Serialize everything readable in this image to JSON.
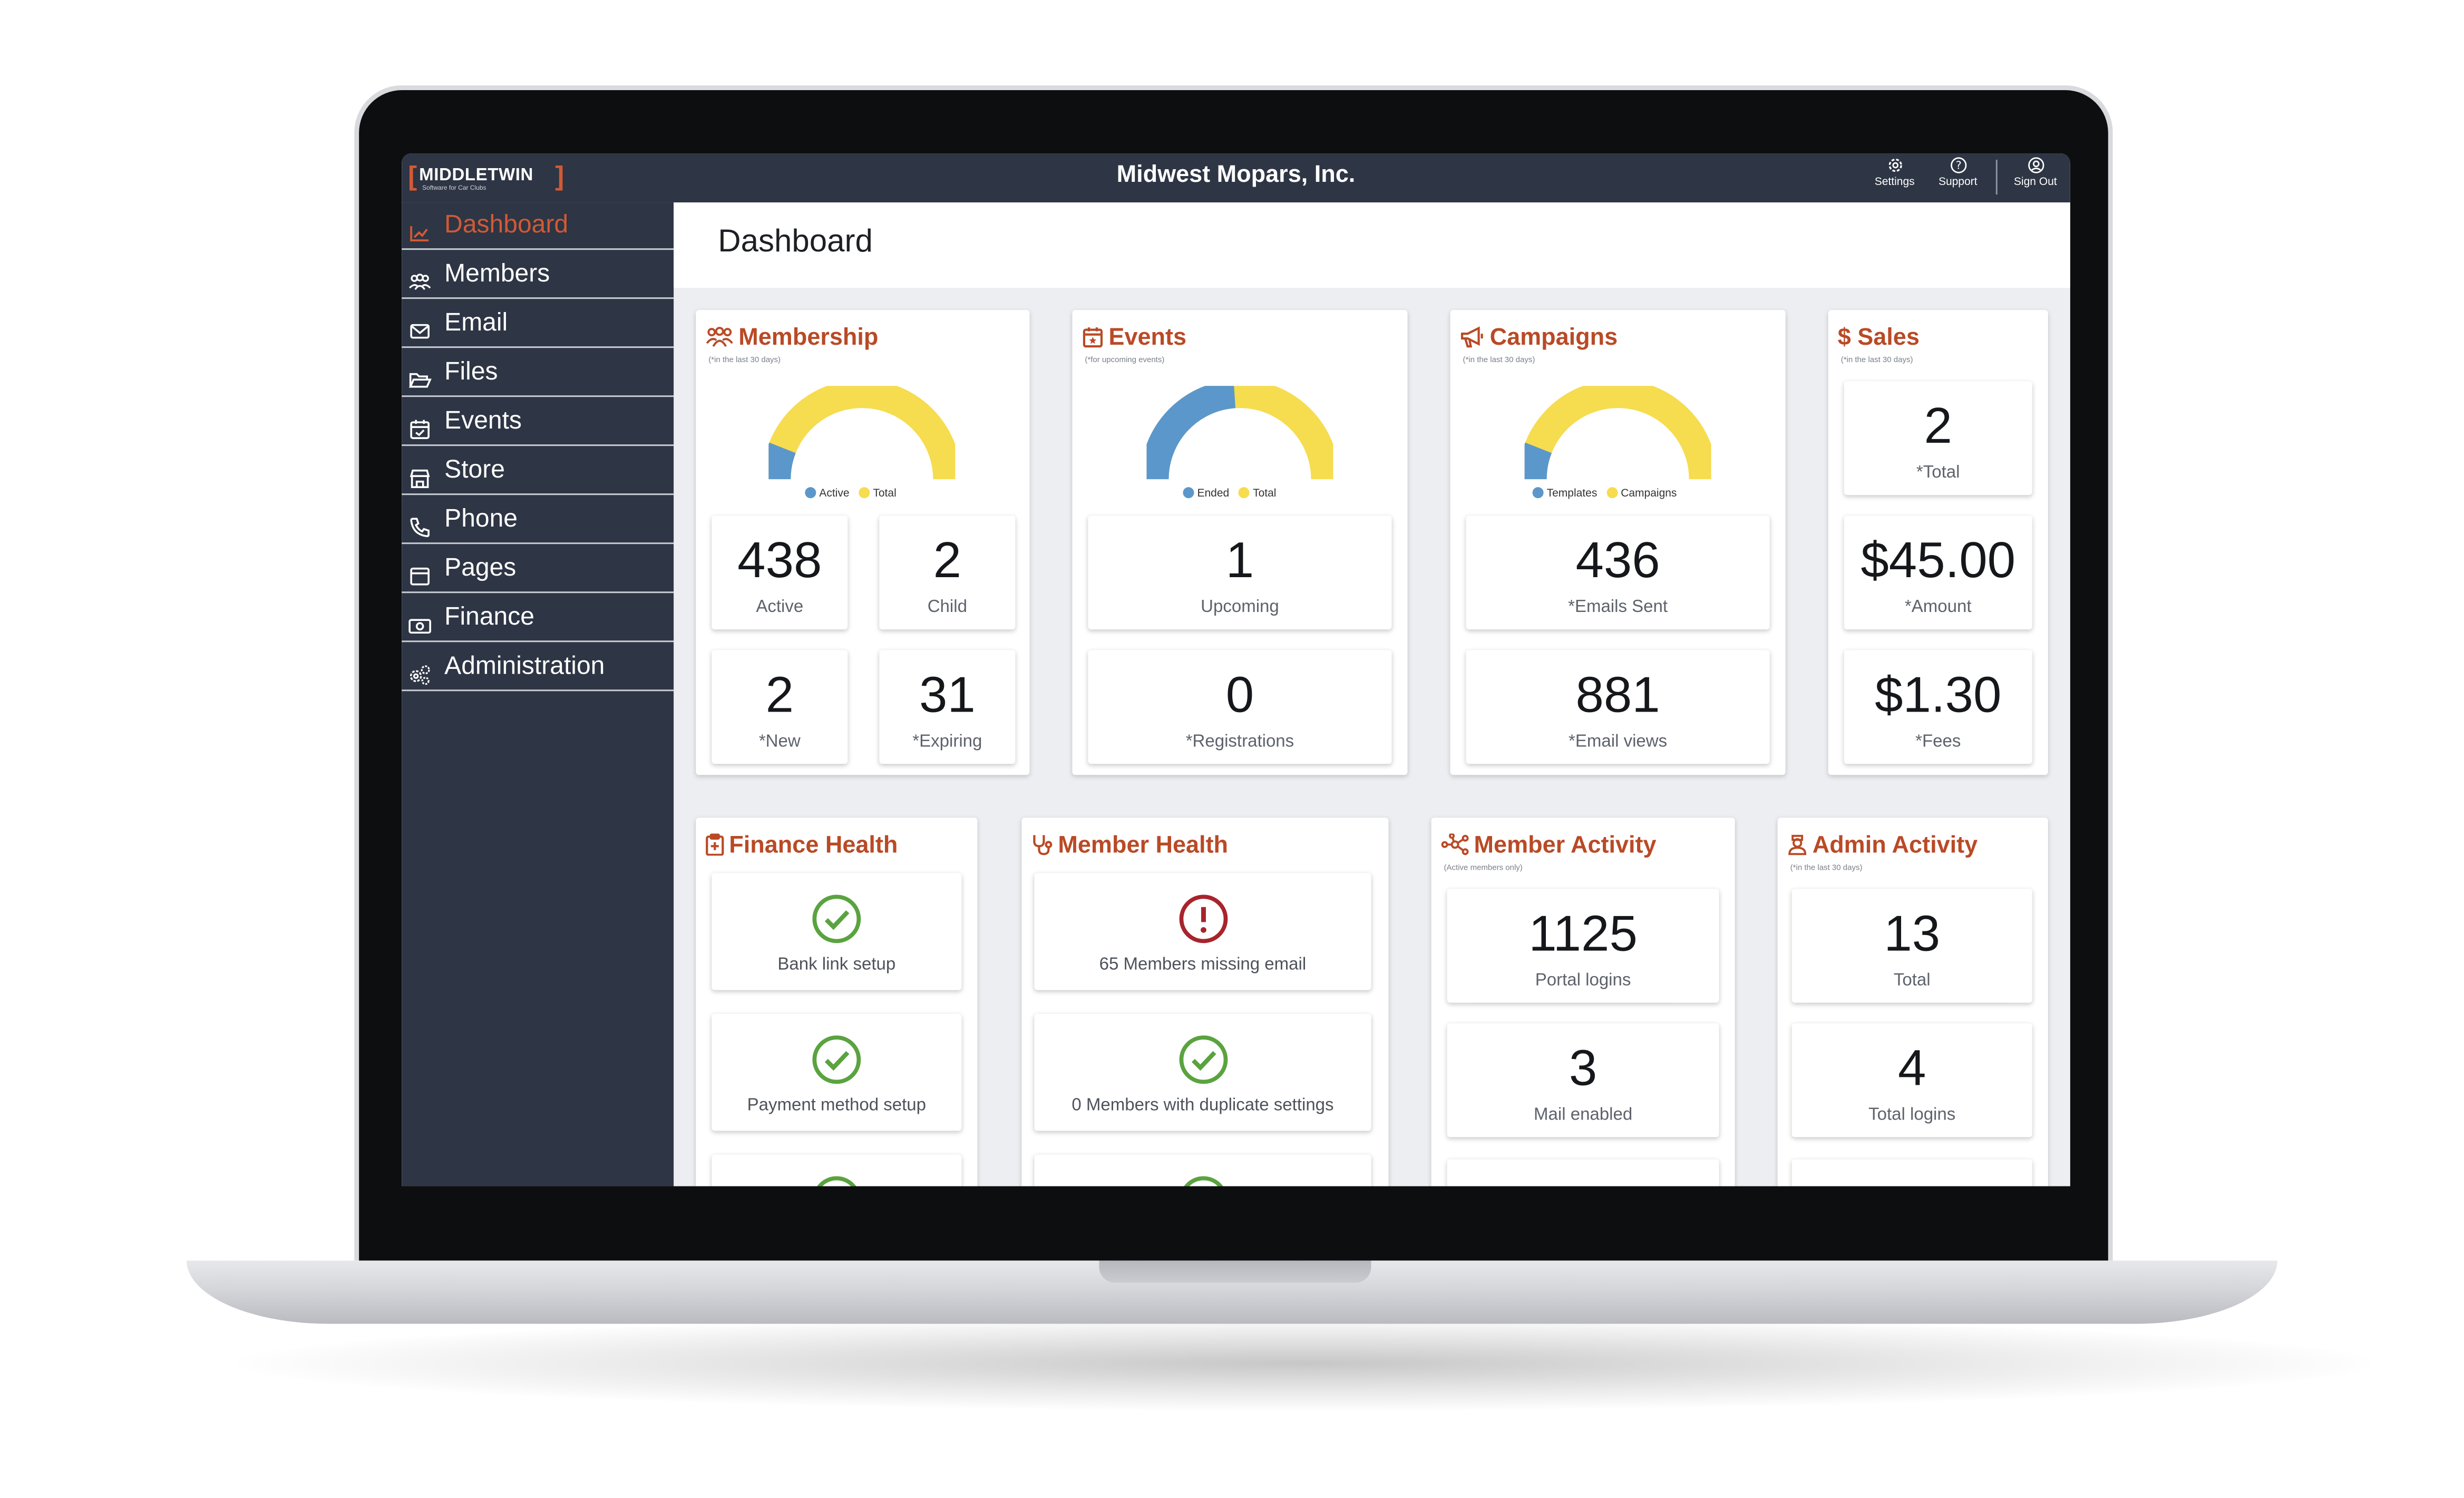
{
  "app": {
    "logo_name": "MIDDLETWIN",
    "logo_subtitle": "Software for Car Clubs",
    "title": "Midwest Mopars, Inc."
  },
  "topbar": {
    "settings": "Settings",
    "support": "Support",
    "sign_out": "Sign Out"
  },
  "sidebar": {
    "items": [
      {
        "label": "Dashboard",
        "icon": "chart-line-icon",
        "active": true
      },
      {
        "label": "Members",
        "icon": "users-icon"
      },
      {
        "label": "Email",
        "icon": "envelope-icon"
      },
      {
        "label": "Files",
        "icon": "folder-open-icon"
      },
      {
        "label": "Events",
        "icon": "calendar-check-icon"
      },
      {
        "label": "Store",
        "icon": "store-icon"
      },
      {
        "label": "Phone",
        "icon": "phone-icon"
      },
      {
        "label": "Pages",
        "icon": "browser-window-icon"
      },
      {
        "label": "Finance",
        "icon": "money-bill-icon"
      },
      {
        "label": "Administration",
        "icon": "gears-icon"
      }
    ]
  },
  "page": {
    "title": "Dashboard"
  },
  "colors": {
    "accent": "#b94a26",
    "nav_active": "#d15a35",
    "sidebar_bg": "#2e3544",
    "gauge_blue": "#5b97cb",
    "gauge_yellow": "#f6dc4f",
    "ok_green": "#5aa33f",
    "alert_red": "#a8242c"
  },
  "cards": {
    "membership": {
      "title": "Membership",
      "subtitle": "(*in the last 30 days)",
      "legend": [
        "Active",
        "Total"
      ],
      "gauge_fraction": 0.12,
      "stats": [
        {
          "value": "438",
          "label": "Active"
        },
        {
          "value": "2",
          "label": "Child"
        },
        {
          "value": "2",
          "label": "*New"
        },
        {
          "value": "31",
          "label": "*Expiring"
        }
      ]
    },
    "events": {
      "title": "Events",
      "subtitle": "(*for upcoming events)",
      "legend": [
        "Ended",
        "Total"
      ],
      "gauge_fraction": 0.48,
      "stats": [
        {
          "value": "1",
          "label": "Upcoming"
        },
        {
          "value": "0",
          "label": "*Registrations"
        }
      ]
    },
    "campaigns": {
      "title": "Campaigns",
      "subtitle": "(*in the last 30 days)",
      "legend": [
        "Templates",
        "Campaigns"
      ],
      "gauge_fraction": 0.12,
      "stats": [
        {
          "value": "436",
          "label": "*Emails Sent"
        },
        {
          "value": "881",
          "label": "*Email views"
        }
      ]
    },
    "sales": {
      "title": "Sales",
      "subtitle": "(*in the last 30 days)",
      "stats": [
        {
          "value": "2",
          "label": "*Total"
        },
        {
          "value": "$45.00",
          "label": "*Amount"
        },
        {
          "value": "$1.30",
          "label": "*Fees"
        }
      ]
    },
    "finance_health": {
      "title": "Finance Health",
      "checks": [
        {
          "label": "Bank link setup",
          "status": "ok"
        },
        {
          "label": "Payment method setup",
          "status": "ok"
        }
      ]
    },
    "member_health": {
      "title": "Member Health",
      "checks": [
        {
          "label": "65 Members missing email",
          "status": "alert"
        },
        {
          "label": "0 Members with duplicate settings",
          "status": "ok"
        }
      ]
    },
    "member_activity": {
      "title": "Member Activity",
      "subtitle": "(Active members only)",
      "stats": [
        {
          "value": "1125",
          "label": "Portal logins"
        },
        {
          "value": "3",
          "label": "Mail enabled"
        }
      ]
    },
    "admin_activity": {
      "title": "Admin Activity",
      "subtitle": "(*in the last 30 days)",
      "stats": [
        {
          "value": "13",
          "label": "Total"
        },
        {
          "value": "4",
          "label": "Total logins"
        }
      ]
    }
  }
}
